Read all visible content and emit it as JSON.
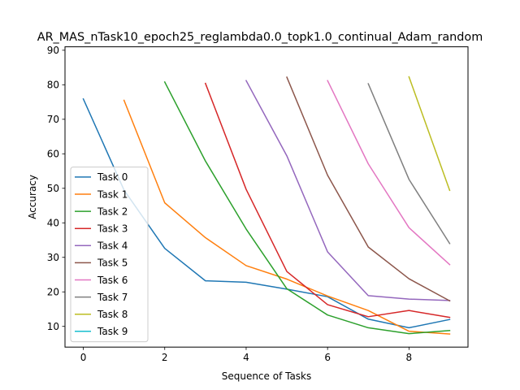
{
  "chart_data": {
    "type": "line",
    "title": "AR_MAS_nTask10_epoch25_reglambda0.0_topk1.0_continual_Adam_random",
    "xlabel": "Sequence of Tasks",
    "ylabel": "Accuracy",
    "xlim": [
      -0.45,
      9.45
    ],
    "ylim": [
      4.0,
      91.0
    ],
    "xticks": [
      0,
      2,
      4,
      6,
      8
    ],
    "yticks": [
      10,
      20,
      30,
      40,
      50,
      60,
      70,
      80,
      90
    ],
    "grid": false,
    "legend_position": "center-left",
    "series": [
      {
        "name": "Task 0",
        "color": "#1f77b4",
        "x": [
          0,
          1,
          2,
          3,
          4,
          5,
          6,
          7,
          8,
          9
        ],
        "values": [
          75.9,
          49.5,
          32.6,
          23.2,
          22.8,
          20.8,
          18.6,
          12.1,
          9.6,
          12.0
        ]
      },
      {
        "name": "Task 1",
        "color": "#ff7f0e",
        "x": [
          1,
          2,
          3,
          4,
          5,
          6,
          7,
          8,
          9
        ],
        "values": [
          75.5,
          45.8,
          35.7,
          27.6,
          23.7,
          18.8,
          14.6,
          8.6,
          7.8
        ]
      },
      {
        "name": "Task 2",
        "color": "#2ca02c",
        "x": [
          2,
          3,
          4,
          5,
          6,
          7,
          8,
          9
        ],
        "values": [
          80.8,
          57.9,
          38.2,
          20.9,
          13.3,
          9.6,
          7.9,
          8.8
        ]
      },
      {
        "name": "Task 3",
        "color": "#d62728",
        "x": [
          3,
          4,
          5,
          6,
          7,
          8,
          9
        ],
        "values": [
          80.4,
          49.7,
          25.9,
          16.3,
          12.8,
          14.6,
          12.6
        ]
      },
      {
        "name": "Task 4",
        "color": "#9467bd",
        "x": [
          4,
          5,
          6,
          7,
          8,
          9
        ],
        "values": [
          81.2,
          59.4,
          31.6,
          18.9,
          17.9,
          17.5
        ]
      },
      {
        "name": "Task 5",
        "color": "#8c564b",
        "x": [
          5,
          6,
          7,
          8,
          9
        ],
        "values": [
          82.2,
          53.8,
          33.0,
          23.8,
          17.4
        ]
      },
      {
        "name": "Task 6",
        "color": "#e377c2",
        "x": [
          6,
          7,
          8,
          9
        ],
        "values": [
          81.2,
          57.1,
          38.6,
          27.9
        ]
      },
      {
        "name": "Task 7",
        "color": "#7f7f7f",
        "x": [
          7,
          8,
          9
        ],
        "values": [
          80.3,
          52.6,
          34.0
        ]
      },
      {
        "name": "Task 8",
        "color": "#bcbd22",
        "x": [
          8,
          9
        ],
        "values": [
          82.3,
          49.4
        ]
      },
      {
        "name": "Task 9",
        "color": "#17becf",
        "x": [
          9
        ],
        "values": [
          null
        ]
      }
    ]
  }
}
